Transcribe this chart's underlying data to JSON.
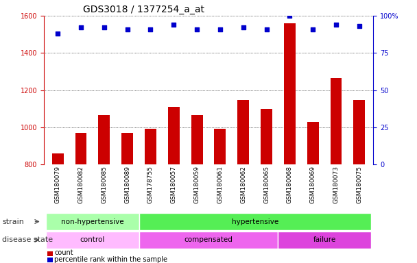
{
  "title": "GDS3018 / 1377254_a_at",
  "samples": [
    "GSM180079",
    "GSM180082",
    "GSM180085",
    "GSM180089",
    "GSM178755",
    "GSM180057",
    "GSM180059",
    "GSM180061",
    "GSM180062",
    "GSM180065",
    "GSM180068",
    "GSM180069",
    "GSM180073",
    "GSM180075"
  ],
  "counts": [
    860,
    970,
    1065,
    970,
    990,
    1110,
    1065,
    990,
    1145,
    1100,
    1560,
    1030,
    1265,
    1145
  ],
  "percentile": [
    88,
    92,
    92,
    91,
    91,
    94,
    91,
    91,
    92,
    91,
    100,
    91,
    94,
    93
  ],
  "bar_color": "#cc0000",
  "dot_color": "#0000cc",
  "ymin": 800,
  "ymax": 1600,
  "yticks": [
    800,
    1000,
    1200,
    1400,
    1600
  ],
  "y2min": 0,
  "y2max": 100,
  "y2ticks": [
    0,
    25,
    50,
    75,
    100
  ],
  "strain_groups": [
    {
      "label": "non-hypertensive",
      "start": 0,
      "end": 4,
      "color": "#aaffaa"
    },
    {
      "label": "hypertensive",
      "start": 4,
      "end": 14,
      "color": "#55ee55"
    }
  ],
  "disease_data": [
    {
      "label": "control",
      "start": 0,
      "end": 4,
      "color": "#ffbbff"
    },
    {
      "label": "compensated",
      "start": 4,
      "end": 10,
      "color": "#ee66ee"
    },
    {
      "label": "failure",
      "start": 10,
      "end": 14,
      "color": "#dd44dd"
    }
  ],
  "strain_label": "strain",
  "disease_label": "disease state",
  "legend_count": "count",
  "legend_pct": "percentile rank within the sample",
  "bar_color_label": "#cc0000",
  "y2label_color": "#0000cc",
  "title_fontsize": 10,
  "tick_fontsize": 7,
  "xtick_fontsize": 6.5,
  "annot_fontsize": 7.5,
  "label_fontsize": 8,
  "xtick_bg": "#dddddd"
}
